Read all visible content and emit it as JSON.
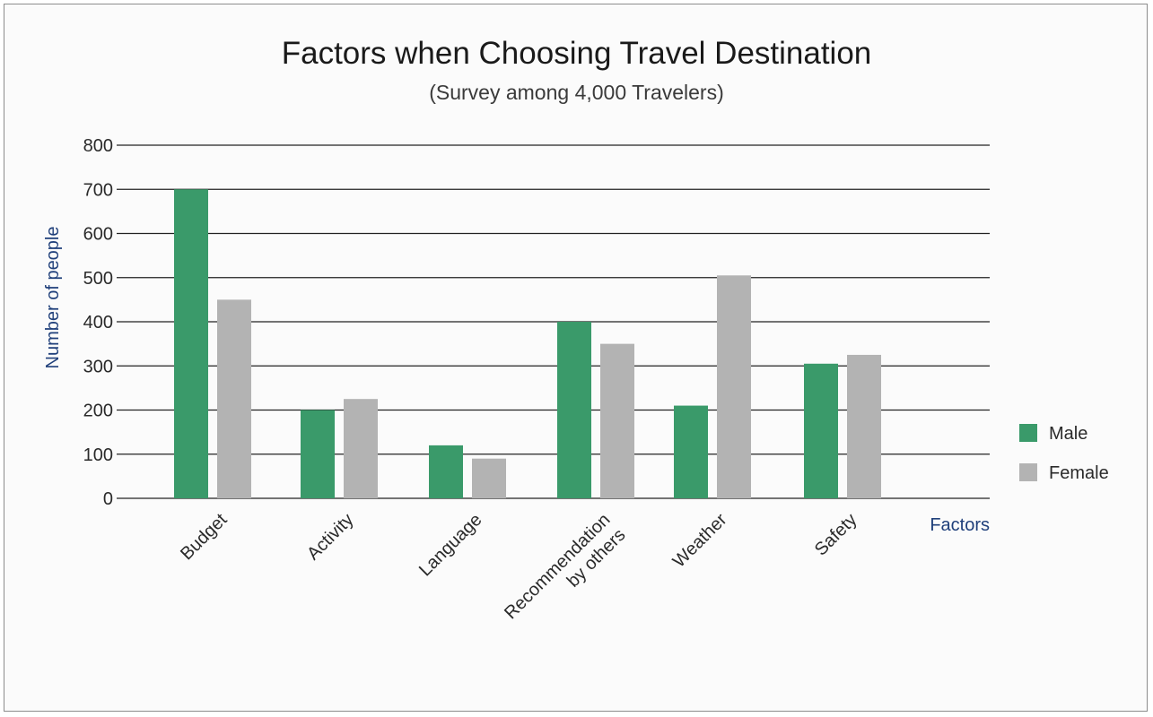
{
  "chart_data": {
    "type": "bar",
    "title": "Factors when Choosing Travel Destination",
    "subtitle": "(Survey among 4,000 Travelers)",
    "xlabel": "Factors",
    "ylabel": "Number of people",
    "ylim": [
      0,
      800
    ],
    "yticks": [
      0,
      100,
      200,
      300,
      400,
      500,
      600,
      700,
      800
    ],
    "grid": true,
    "legend_position": "right",
    "categories": [
      [
        "Budget"
      ],
      [
        "Activity"
      ],
      [
        "Language"
      ],
      [
        "Recommendation",
        "by others"
      ],
      [
        "Weather"
      ],
      [
        "Safety"
      ]
    ],
    "series": [
      {
        "name": "Male",
        "color": "#3a9a6a",
        "values": [
          700,
          200,
          120,
          400,
          210,
          305
        ]
      },
      {
        "name": "Female",
        "color": "#b3b3b3",
        "values": [
          450,
          225,
          90,
          350,
          505,
          325
        ]
      }
    ]
  }
}
